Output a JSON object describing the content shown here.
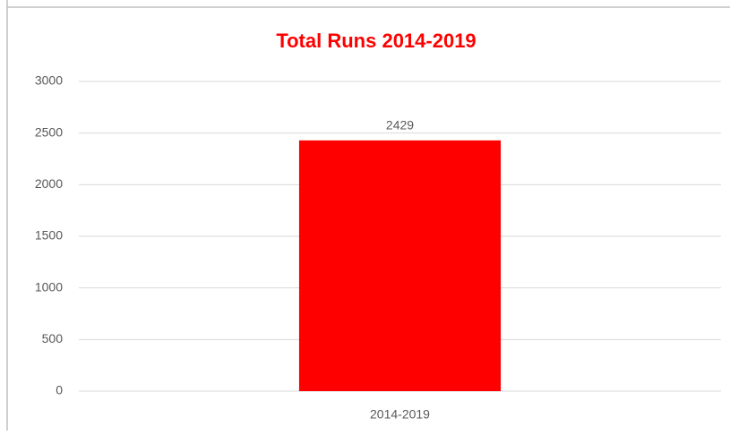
{
  "chart_data": {
    "type": "bar",
    "title": "Total Runs 2014-2019",
    "categories": [
      "2014-2019"
    ],
    "values": [
      2429
    ],
    "color": "#ff0000",
    "ylim": [
      0,
      3000
    ],
    "yticks": [
      0,
      500,
      1000,
      1500,
      2000,
      2500,
      3000
    ],
    "grid": true
  }
}
